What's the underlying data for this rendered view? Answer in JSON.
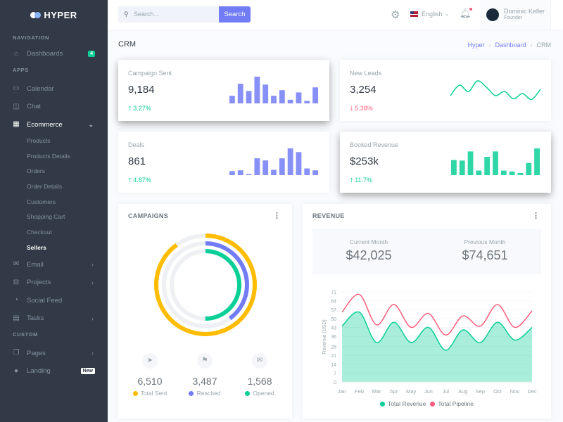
{
  "app": {
    "name": "HYPER"
  },
  "sidebar": {
    "sections": [
      "NAVIGATION",
      "APPS",
      "CUSTOM"
    ],
    "dashboards": {
      "label": "Dashboards",
      "badge": "4",
      "icon": "home-icon"
    },
    "apps": [
      {
        "label": "Calendar",
        "icon": "calendar-icon"
      },
      {
        "label": "Chat",
        "icon": "chat-icon"
      },
      {
        "label": "Ecommerce",
        "icon": "store-icon",
        "expanded": true
      }
    ],
    "ecommerce_sub": [
      "Products",
      "Products Details",
      "Orders",
      "Order Details",
      "Customers",
      "Shopping Cart",
      "Checkout",
      "Sellers"
    ],
    "apps2": [
      {
        "label": "Email",
        "icon": "mail-icon"
      },
      {
        "label": "Projects",
        "icon": "briefcase-icon"
      },
      {
        "label": "Social Feed",
        "icon": "rss-icon"
      },
      {
        "label": "Tasks",
        "icon": "clipboard-icon"
      }
    ],
    "custom": [
      {
        "label": "Pages",
        "icon": "pages-icon"
      },
      {
        "label": "Landing",
        "icon": "globe-icon",
        "badge": "New"
      }
    ]
  },
  "topbar": {
    "search_placeholder": "Search...",
    "search_button": "Search",
    "language": "English",
    "user": {
      "name": "Dominic Keller",
      "role": "Founder"
    }
  },
  "page": {
    "title": "CRM",
    "breadcrumb": [
      "Hyper",
      "Dashboard",
      "CRM"
    ]
  },
  "stats": [
    {
      "title": "Campaign Sent",
      "value": "9,184",
      "change": "3.27%",
      "trend": "up",
      "spark": {
        "type": "bar",
        "color": "#727cf5",
        "values": [
          27,
          70,
          44,
          95,
          67,
          27,
          47,
          13,
          39,
          9,
          57
        ]
      }
    },
    {
      "title": "New Leads",
      "value": "3,254",
      "change": "5.38%",
      "trend": "down",
      "spark": {
        "type": "line",
        "color": "#0acf97",
        "values": [
          3,
          8,
          5,
          10,
          7,
          3,
          5,
          1.5,
          4,
          1.2,
          6
        ]
      }
    },
    {
      "title": "Deals",
      "value": "861",
      "change": "4.87%",
      "trend": "up",
      "spark": {
        "type": "bar",
        "color": "#727cf5",
        "values": [
          15,
          18,
          4,
          63,
          55,
          20,
          63,
          100,
          86,
          25,
          18
        ]
      }
    },
    {
      "title": "Booked Revenue",
      "value": "$253k",
      "change": "11.7%",
      "trend": "up",
      "spark": {
        "type": "bar",
        "color": "#0acf97",
        "values": [
          50,
          48,
          78,
          15,
          60,
          78,
          15,
          12,
          7,
          40,
          88
        ]
      }
    }
  ],
  "campaigns": {
    "title": "CAMPAIGNS",
    "rings": [
      {
        "name": "Total Sent",
        "percent": 90,
        "color": "#ffbc00"
      },
      {
        "name": "Reached",
        "percent": 40,
        "color": "#727cf5"
      },
      {
        "name": "Opened",
        "percent": 50,
        "color": "#0acf97"
      }
    ],
    "stats": [
      {
        "icon": "send-icon",
        "value": "6,510",
        "label": "Total Sent",
        "color": "#ffbc00"
      },
      {
        "icon": "flag-icon",
        "value": "3,487",
        "label": "Reached",
        "color": "#727cf5"
      },
      {
        "icon": "mail-open-icon",
        "value": "1,568",
        "label": "Opened",
        "color": "#0acf97"
      }
    ]
  },
  "revenue": {
    "title": "REVENUE",
    "current_label": "Current Month",
    "current_value": "$42,025",
    "previous_label": "Previous Month",
    "previous_value": "$74,651"
  },
  "chart_data": {
    "type": "area",
    "categories": [
      "Jan",
      "Feb",
      "Mar",
      "Apr",
      "May",
      "Jun",
      "Jul",
      "Aug",
      "Sep",
      "Oct",
      "Nov",
      "Dec"
    ],
    "ylabel": "Revenue (USD)",
    "yticks": [
      0,
      7,
      14,
      21,
      28,
      36,
      43,
      50,
      57,
      64,
      71
    ],
    "ylim": [
      0,
      71
    ],
    "legend": "bottom",
    "series": [
      {
        "name": "Total Revenue",
        "color": "#0acf97",
        "fill": true,
        "values": [
          44,
          55,
          31,
          47,
          31,
          43,
          25,
          41,
          31,
          47,
          33,
          43
        ]
      },
      {
        "name": "Total Pipeline",
        "color": "#fa5c7c",
        "fill": false,
        "values": [
          55,
          69,
          45,
          61,
          43,
          54,
          37,
          52,
          44,
          61,
          43,
          56
        ]
      }
    ]
  }
}
